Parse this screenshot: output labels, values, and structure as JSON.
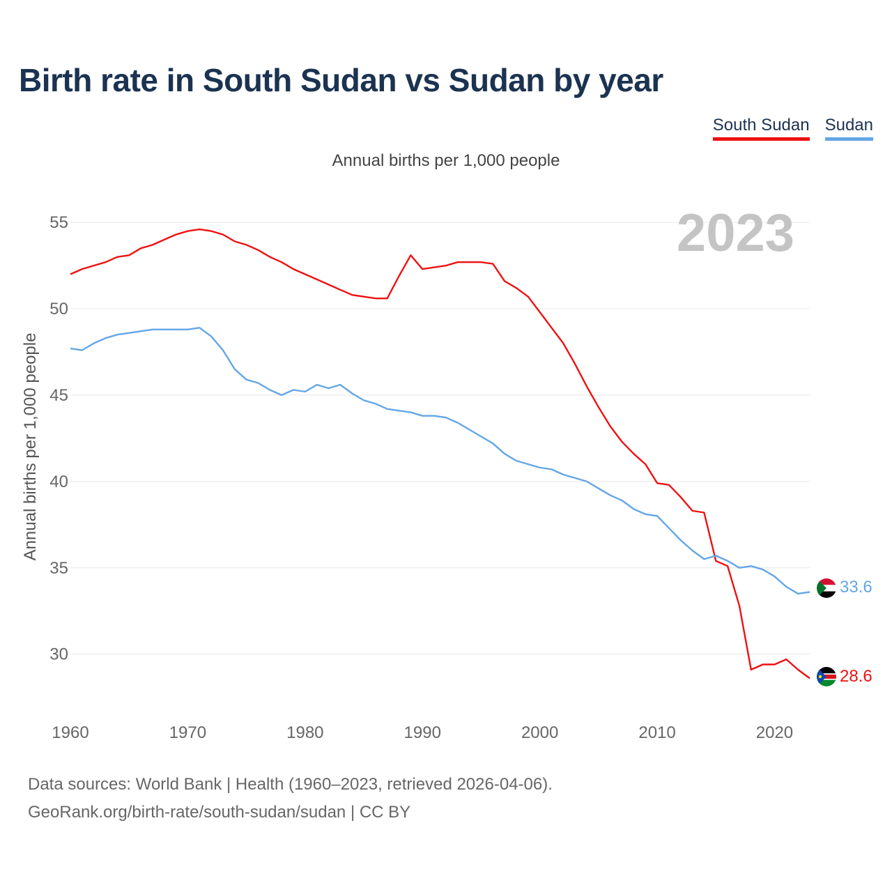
{
  "header": {
    "title": "Birth rate in South Sudan vs Sudan by year",
    "subtitle": "Annual births per 1,000 people"
  },
  "legend": {
    "south_sudan": "South Sudan",
    "sudan": "Sudan"
  },
  "footer": {
    "line1": "Data sources: World Bank | Health (1960–2023, retrieved 2026-04-06).",
    "line2": "GeoRank.org/birth-rate/south-sudan/sudan | CC BY"
  },
  "colors": {
    "south_sudan": "#ee1111",
    "sudan": "#64a6e6",
    "title": "#1b3351",
    "grid": "#e6e6e6"
  },
  "chart_data": {
    "type": "line",
    "title": "Birth rate in South Sudan vs Sudan by year",
    "ylabel": "Annual births per 1,000 people",
    "xlabel": "",
    "year_watermark": "2023",
    "xlim": [
      1960,
      2023
    ],
    "ylim": [
      27,
      56.5
    ],
    "xticks": [
      1960,
      1970,
      1980,
      1990,
      2000,
      2010,
      2020
    ],
    "yticks": [
      30,
      35,
      40,
      45,
      50,
      55
    ],
    "grid": true,
    "legend_position": "top-right",
    "x": [
      1960,
      1961,
      1962,
      1963,
      1964,
      1965,
      1966,
      1967,
      1968,
      1969,
      1970,
      1971,
      1972,
      1973,
      1974,
      1975,
      1976,
      1977,
      1978,
      1979,
      1980,
      1981,
      1982,
      1983,
      1984,
      1985,
      1986,
      1987,
      1988,
      1989,
      1990,
      1991,
      1992,
      1993,
      1994,
      1995,
      1996,
      1997,
      1998,
      1999,
      2000,
      2001,
      2002,
      2003,
      2004,
      2005,
      2006,
      2007,
      2008,
      2009,
      2010,
      2011,
      2012,
      2013,
      2014,
      2015,
      2016,
      2017,
      2018,
      2019,
      2020,
      2021,
      2022,
      2023
    ],
    "series": [
      {
        "name": "South Sudan",
        "key": "south_sudan",
        "end_label": "28.6",
        "values": [
          52.0,
          52.3,
          52.5,
          52.7,
          53.0,
          53.1,
          53.5,
          53.7,
          54.0,
          54.3,
          54.5,
          54.6,
          54.5,
          54.3,
          53.9,
          53.7,
          53.4,
          53.0,
          52.7,
          52.3,
          52.0,
          51.7,
          51.4,
          51.1,
          50.8,
          50.7,
          50.6,
          50.6,
          51.9,
          53.1,
          52.3,
          52.4,
          52.5,
          52.7,
          52.7,
          52.7,
          52.6,
          51.6,
          51.2,
          50.7,
          49.8,
          48.9,
          48.0,
          46.8,
          45.5,
          44.3,
          43.2,
          42.3,
          41.6,
          41.0,
          39.9,
          39.8,
          39.1,
          38.3,
          38.2,
          35.4,
          35.1,
          32.8,
          29.1,
          29.4,
          29.4,
          29.7,
          29.1,
          28.6
        ]
      },
      {
        "name": "Sudan",
        "key": "sudan",
        "end_label": "33.6",
        "values": [
          47.7,
          47.6,
          48.0,
          48.3,
          48.5,
          48.6,
          48.7,
          48.8,
          48.8,
          48.8,
          48.8,
          48.9,
          48.4,
          47.6,
          46.5,
          45.9,
          45.7,
          45.3,
          45.0,
          45.3,
          45.2,
          45.6,
          45.4,
          45.6,
          45.1,
          44.7,
          44.5,
          44.2,
          44.1,
          44.0,
          43.8,
          43.8,
          43.7,
          43.4,
          43.0,
          42.6,
          42.2,
          41.6,
          41.2,
          41.0,
          40.8,
          40.7,
          40.4,
          40.2,
          40.0,
          39.6,
          39.2,
          38.9,
          38.4,
          38.1,
          38.0,
          37.3,
          36.6,
          36.0,
          35.5,
          35.7,
          35.4,
          35.0,
          35.1,
          34.9,
          34.5,
          33.9,
          33.5,
          33.6
        ]
      }
    ]
  }
}
